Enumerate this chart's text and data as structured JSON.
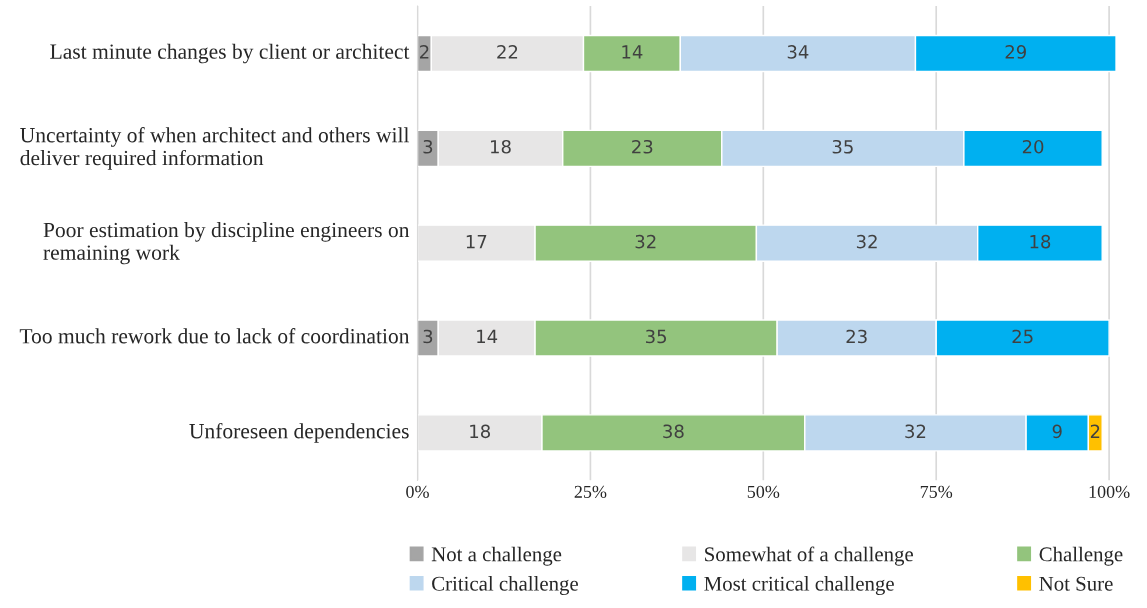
{
  "chart_data": {
    "type": "bar",
    "orientation": "horizontal",
    "stacked": true,
    "data_labels": true,
    "categories": [
      "Last minute changes by client or architect",
      "Uncertainty of when architect and others will deliver required information",
      "Poor estimation by discipline engineers on remaining work",
      "Too much rework due to lack of coordination",
      "Unforeseen dependencies"
    ],
    "series": [
      {
        "name": "Not a challenge",
        "color": "#a5a5a5",
        "values": [
          2,
          3,
          null,
          3,
          null
        ]
      },
      {
        "name": "Somewhat of a challenge",
        "color": "#e7e6e6",
        "values": [
          22,
          18,
          17,
          14,
          18
        ]
      },
      {
        "name": "Challenge",
        "color": "#93c47d",
        "values": [
          14,
          23,
          32,
          35,
          38
        ]
      },
      {
        "name": "Critical challenge",
        "color": "#bdd7ee",
        "values": [
          34,
          35,
          32,
          23,
          32
        ]
      },
      {
        "name": "Most critical challenge",
        "color": "#00b0f0",
        "values": [
          29,
          20,
          18,
          25,
          9
        ]
      },
      {
        "name": "Not Sure",
        "color": "#ffc000",
        "values": [
          null,
          null,
          null,
          null,
          2
        ]
      }
    ],
    "xlim": [
      0,
      101
    ],
    "xticks": [
      {
        "value": 0,
        "label": "0%"
      },
      {
        "value": 25,
        "label": "25%"
      },
      {
        "value": 50,
        "label": "50%"
      },
      {
        "value": 75,
        "label": "75%"
      },
      {
        "value": 100,
        "label": "100%"
      }
    ],
    "grid": "x",
    "legend": "bottom"
  }
}
